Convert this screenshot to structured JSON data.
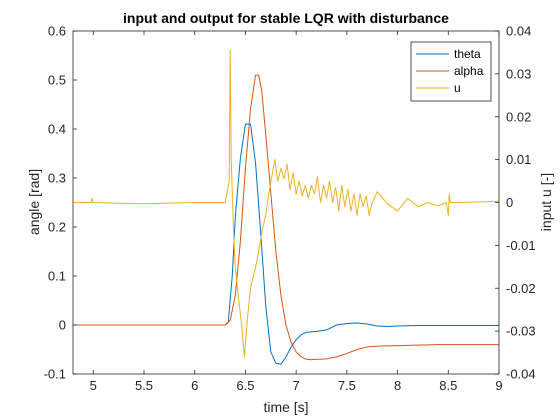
{
  "chart_data": {
    "type": "line",
    "title": "input and output for stable LQR with disturbance",
    "xlabel": "time [s]",
    "ylabel_left": "angle [rad]",
    "ylabel_right": "input u [-]",
    "xlim": [
      4.8,
      9
    ],
    "ylim_left": [
      -0.1,
      0.6
    ],
    "ylim_right": [
      -0.04,
      0.04
    ],
    "x_ticks": [
      "5",
      "5.5",
      "6",
      "6.5",
      "7",
      "7.5",
      "8",
      "8.5",
      "9"
    ],
    "y_ticks_left": [
      "-0.1",
      "0",
      "0.1",
      "0.2",
      "0.3",
      "0.4",
      "0.5",
      "0.6"
    ],
    "y_ticks_right": [
      "-0.04",
      "-0.03",
      "-0.02",
      "-0.01",
      "0",
      "0.01",
      "0.02",
      "0.03",
      "0.04"
    ],
    "grid": false,
    "legend_position": "top-right",
    "series": [
      {
        "name": "theta",
        "axis": "left",
        "color": "#0072BD",
        "x": [
          4.8,
          6.3,
          6.33,
          6.37,
          6.4,
          6.45,
          6.5,
          6.55,
          6.6,
          6.65,
          6.7,
          6.75,
          6.8,
          6.85,
          6.9,
          6.95,
          7.0,
          7.05,
          7.1,
          7.15,
          7.2,
          7.3,
          7.4,
          7.5,
          7.6,
          7.7,
          7.8,
          7.9,
          8.0,
          8.2,
          8.4,
          8.6,
          9.0
        ],
        "y": [
          0.0,
          0.0,
          0.005,
          0.1,
          0.22,
          0.34,
          0.41,
          0.41,
          0.33,
          0.19,
          0.04,
          -0.055,
          -0.078,
          -0.08,
          -0.065,
          -0.045,
          -0.03,
          -0.02,
          -0.015,
          -0.014,
          -0.013,
          -0.01,
          0.0,
          0.003,
          0.004,
          0.002,
          -0.002,
          -0.003,
          -0.002,
          -0.001,
          -0.001,
          -0.001,
          -0.001
        ]
      },
      {
        "name": "alpha",
        "axis": "left",
        "color": "#D95319",
        "x": [
          4.8,
          6.3,
          6.35,
          6.4,
          6.45,
          6.5,
          6.55,
          6.6,
          6.63,
          6.66,
          6.7,
          6.75,
          6.8,
          6.85,
          6.9,
          6.95,
          7.0,
          7.05,
          7.1,
          7.15,
          7.2,
          7.25,
          7.3,
          7.4,
          7.5,
          7.6,
          7.7,
          7.8,
          8.0,
          8.2,
          8.4,
          9.0
        ],
        "y": [
          0.0,
          0.0,
          0.01,
          0.06,
          0.17,
          0.32,
          0.44,
          0.51,
          0.51,
          0.48,
          0.39,
          0.27,
          0.15,
          0.06,
          0.0,
          -0.035,
          -0.055,
          -0.065,
          -0.07,
          -0.071,
          -0.07,
          -0.07,
          -0.069,
          -0.065,
          -0.058,
          -0.05,
          -0.045,
          -0.043,
          -0.042,
          -0.041,
          -0.04,
          -0.04
        ]
      },
      {
        "name": "u",
        "axis": "right",
        "color": "#EDB120",
        "x": [
          4.8,
          4.98,
          4.99,
          5.0,
          5.3,
          5.5,
          6.0,
          6.3,
          6.34,
          6.35,
          6.36,
          6.38,
          6.4,
          6.43,
          6.46,
          6.49,
          6.52,
          6.55,
          6.58,
          6.61,
          6.64,
          6.67,
          6.7,
          6.73,
          6.76,
          6.79,
          6.82,
          6.85,
          6.88,
          6.91,
          6.94,
          6.97,
          7.0,
          7.03,
          7.06,
          7.09,
          7.12,
          7.15,
          7.18,
          7.21,
          7.24,
          7.27,
          7.3,
          7.33,
          7.36,
          7.39,
          7.42,
          7.45,
          7.48,
          7.51,
          7.54,
          7.57,
          7.6,
          7.63,
          7.66,
          7.69,
          7.72,
          7.75,
          7.8,
          7.9,
          8.0,
          8.1,
          8.2,
          8.3,
          8.4,
          8.48,
          8.5,
          8.51,
          8.52,
          8.6,
          9.0
        ],
        "y": [
          0.0,
          0.0,
          0.001,
          0.0,
          -0.0002,
          -0.0003,
          0.0,
          0.0,
          0.005,
          0.0355,
          0.01,
          -0.005,
          -0.015,
          -0.022,
          -0.028,
          -0.036,
          -0.027,
          -0.02,
          -0.017,
          -0.014,
          -0.01,
          -0.006,
          -0.003,
          0.002,
          0.006,
          0.01,
          0.005,
          0.008,
          0.0055,
          0.009,
          0.003,
          0.007,
          0.002,
          0.005,
          0.0015,
          0.004,
          0.001,
          0.004,
          0.002,
          0.006,
          0.0,
          0.004,
          0.001,
          0.005,
          0.0,
          0.0035,
          -0.002,
          0.004,
          -0.001,
          0.003,
          -0.002,
          0.002,
          -0.003,
          0.002,
          -0.001,
          0.0015,
          -0.003,
          0.0,
          0.0025,
          -0.0003,
          -0.002,
          0.001,
          -0.001,
          0.0,
          -0.0008,
          0.0,
          -0.003,
          0.002,
          0.0,
          0.0,
          0.0003
        ]
      }
    ]
  }
}
